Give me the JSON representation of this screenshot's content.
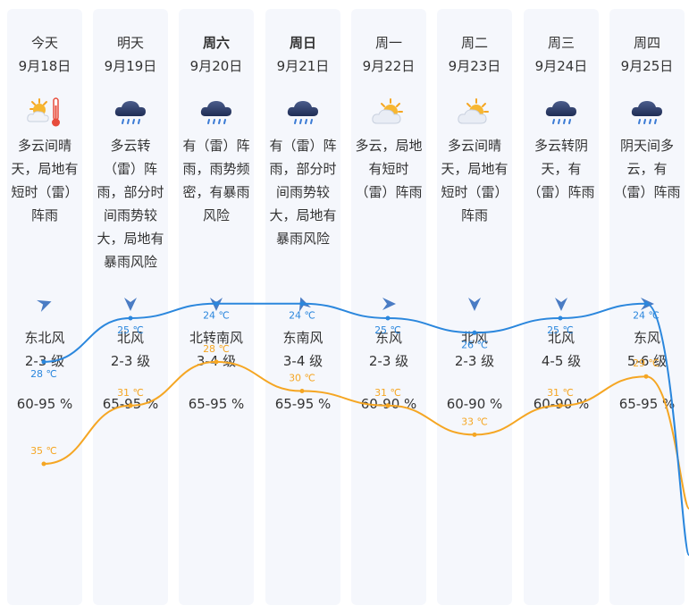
{
  "days": [
    {
      "name": "今天",
      "bold": false,
      "date": "9月18日",
      "icon": "sunny-cloud-thermometer-icon",
      "desc": "多云间晴天，局地有短时（雷）阵雨",
      "wind_icon": "wind-arrow-icon",
      "wind_dir": "东北风",
      "wind_level": "2-3 级",
      "humidity": "60-95 %",
      "high": "35 ℃",
      "low": "28 ℃"
    },
    {
      "name": "明天",
      "bold": false,
      "date": "9月19日",
      "icon": "rain-cloud-icon",
      "desc": "多云转（雷）阵雨，部分时间雨势较大，局地有暴雨风险",
      "wind_icon": "wind-arrow-icon",
      "wind_dir": "北风",
      "wind_level": "2-3 级",
      "humidity": "65-95 %",
      "high": "31 ℃",
      "low": "25 ℃"
    },
    {
      "name": "周六",
      "bold": true,
      "date": "9月20日",
      "icon": "rain-cloud-icon",
      "desc": "有（雷）阵雨，雨势频密，有暴雨风险",
      "wind_icon": "wind-arrow-icon",
      "wind_dir": "北转南风",
      "wind_level": "3-4 级",
      "humidity": "65-95 %",
      "high": "28 ℃",
      "low": "24 ℃"
    },
    {
      "name": "周日",
      "bold": true,
      "date": "9月21日",
      "icon": "rain-cloud-icon",
      "desc": "有（雷）阵雨，部分时间雨势较大，局地有暴雨风险",
      "wind_icon": "wind-arrow-icon",
      "wind_dir": "东南风",
      "wind_level": "3-4 级",
      "humidity": "65-95 %",
      "high": "30 ℃",
      "low": "24 ℃"
    },
    {
      "name": "周一",
      "bold": false,
      "date": "9月22日",
      "icon": "partly-cloudy-icon",
      "desc": "多云，局地有短时（雷）阵雨",
      "wind_icon": "wind-arrow-icon",
      "wind_dir": "东风",
      "wind_level": "2-3 级",
      "humidity": "60-90 %",
      "high": "31 ℃",
      "low": "25 ℃"
    },
    {
      "name": "周二",
      "bold": false,
      "date": "9月23日",
      "icon": "partly-cloudy-icon",
      "desc": "多云间晴天，局地有短时（雷）阵雨",
      "wind_icon": "wind-arrow-icon",
      "wind_dir": "北风",
      "wind_level": "2-3 级",
      "humidity": "60-90 %",
      "high": "33 ℃",
      "low": "26 ℃"
    },
    {
      "name": "周三",
      "bold": false,
      "date": "9月24日",
      "icon": "rain-cloud-icon",
      "desc": "多云转阴天，有（雷）阵雨",
      "wind_icon": "wind-arrow-icon",
      "wind_dir": "北风",
      "wind_level": "4-5 级",
      "humidity": "60-90 %",
      "high": "31 ℃",
      "low": "25 ℃"
    },
    {
      "name": "周四",
      "bold": false,
      "date": "9月25日",
      "icon": "rain-cloud-icon",
      "desc": "阴天间多云，有（雷）阵雨",
      "wind_icon": "wind-arrow-icon",
      "wind_dir": "东风",
      "wind_level": "5-6 级",
      "humidity": "65-95 %",
      "high": "29 ℃",
      "low": "24 ℃"
    }
  ],
  "colors": {
    "high_line": "#f5a623",
    "low_line": "#2b87dd",
    "column_bg": "#f5f7fc",
    "arrow": "#4a7cc4"
  },
  "chart_data": {
    "type": "line",
    "categories": [
      "9月18日",
      "9月19日",
      "9月20日",
      "9月21日",
      "9月22日",
      "9月23日",
      "9月24日",
      "9月25日"
    ],
    "series": [
      {
        "values": [
          35,
          31,
          28,
          30,
          31,
          33,
          31,
          29
        ]
      },
      {
        "values": [
          28,
          25,
          24,
          24,
          25,
          26,
          25,
          24
        ]
      }
    ],
    "unit": "℃"
  }
}
